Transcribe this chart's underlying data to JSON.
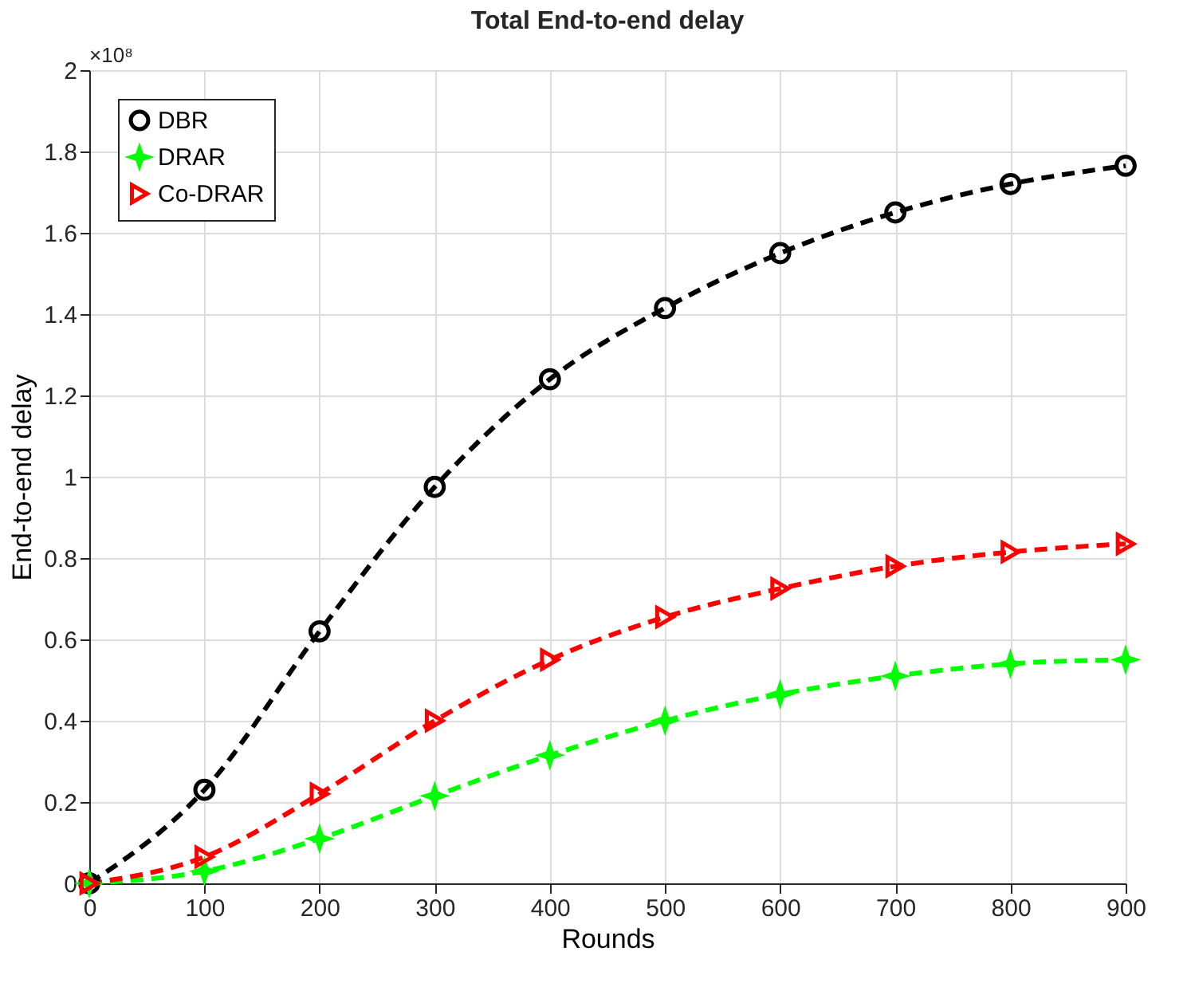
{
  "chart_data": {
    "type": "line",
    "title": "Total End-to-end delay",
    "xlabel": "Rounds",
    "ylabel": "End-to-end delay",
    "annotations": [
      "×10⁸"
    ],
    "x": [
      0,
      100,
      200,
      300,
      400,
      500,
      600,
      700,
      800,
      900
    ],
    "series": [
      {
        "name": "DBR",
        "color": "#000000",
        "marker": "circle",
        "values": [
          0,
          0.23,
          0.62,
          0.975,
          1.24,
          1.415,
          1.55,
          1.65,
          1.72,
          1.765
        ]
      },
      {
        "name": "DRAR",
        "color": "#00ff00",
        "marker": "star",
        "values": [
          0,
          0.03,
          0.11,
          0.215,
          0.315,
          0.4,
          0.465,
          0.51,
          0.54,
          0.55
        ]
      },
      {
        "name": "Co-DRAR",
        "color": "#ff0000",
        "marker": "triangle",
        "values": [
          0,
          0.065,
          0.22,
          0.4,
          0.55,
          0.655,
          0.725,
          0.78,
          0.815,
          0.835
        ]
      }
    ],
    "xlim": [
      0,
      900
    ],
    "xticks": [
      0,
      100,
      200,
      300,
      400,
      500,
      600,
      700,
      800,
      900
    ],
    "ylim": [
      0,
      2
    ],
    "yticks": [
      0,
      0.2,
      0.4,
      0.6,
      0.8,
      1,
      1.2,
      1.4,
      1.6,
      1.8,
      2
    ],
    "grid": true,
    "legend": "top left",
    "line_style": "dashed"
  }
}
